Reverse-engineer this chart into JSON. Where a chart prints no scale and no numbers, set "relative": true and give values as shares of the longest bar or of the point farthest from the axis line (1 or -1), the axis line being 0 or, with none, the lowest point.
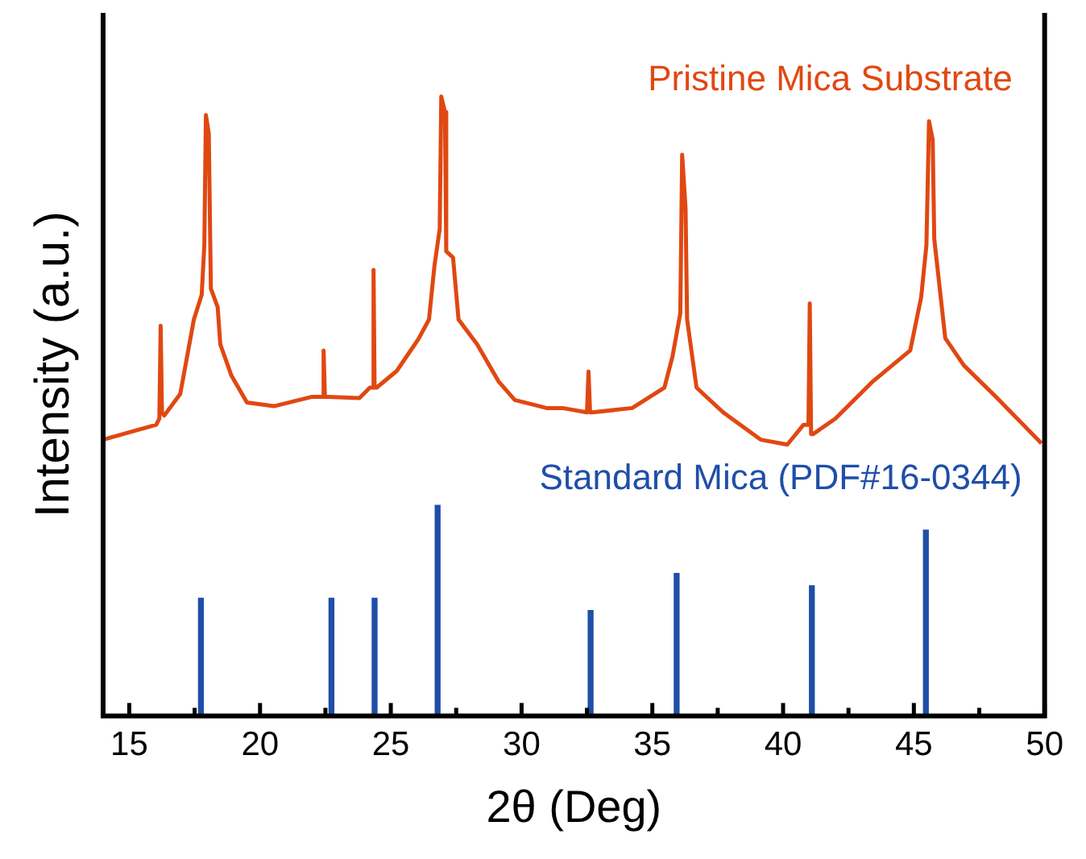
{
  "chart_data": {
    "type": "line",
    "xlabel": "2θ (Deg)",
    "ylabel": "Intensity (a.u.)",
    "relative": true,
    "xlim": [
      14,
      50
    ],
    "xticks": [
      15,
      {
        "value": 17.5,
        "label": null
      },
      20,
      {
        "value": 22.5,
        "label": null
      },
      25,
      {
        "value": 27.5,
        "label": null
      },
      30,
      {
        "value": 32.5,
        "label": null
      },
      35,
      {
        "value": 37.5,
        "label": null
      },
      40,
      {
        "value": 42.5,
        "label": null
      },
      45,
      {
        "value": 47.5,
        "label": null
      },
      50
    ],
    "tick_labels": "x",
    "grid": false,
    "legend": false,
    "marker": "none",
    "line_style": "solid",
    "series": [
      {
        "name": "Pristine Mica Substrate",
        "color": "#e04812",
        "x": [
          14.0,
          16.03,
          16.15,
          16.2,
          16.25,
          16.34,
          16.95,
          17.47,
          17.77,
          17.87,
          17.93,
          18.04,
          18.12,
          18.38,
          18.48,
          18.9,
          19.5,
          20.53,
          21.96,
          22.38,
          22.43,
          22.48,
          22.6,
          23.8,
          24.2,
          24.3,
          24.34,
          24.38,
          24.46,
          25.23,
          26.05,
          26.46,
          26.67,
          26.87,
          26.93,
          27.07,
          27.12,
          27.38,
          27.59,
          28.3,
          29.12,
          29.74,
          30.96,
          31.57,
          32.5,
          32.56,
          32.62,
          32.7,
          34.23,
          35.46,
          35.77,
          36.07,
          36.14,
          36.27,
          36.33,
          36.69,
          37.71,
          39.14,
          40.16,
          40.78,
          40.97,
          41.02,
          41.07,
          41.15,
          42.0,
          43.43,
          44.86,
          45.28,
          45.48,
          45.58,
          45.72,
          45.78,
          46.2,
          46.91,
          48.14,
          49.88
        ],
        "values": [
          0.446,
          0.47,
          0.48,
          0.63,
          0.49,
          0.485,
          0.52,
          0.64,
          0.68,
          0.76,
          0.97,
          0.94,
          0.69,
          0.66,
          0.6,
          0.55,
          0.506,
          0.5,
          0.515,
          0.515,
          0.59,
          0.515,
          0.515,
          0.513,
          0.53,
          0.53,
          0.72,
          0.53,
          0.53,
          0.557,
          0.608,
          0.64,
          0.727,
          0.786,
          1.0,
          0.975,
          0.75,
          0.74,
          0.64,
          0.6,
          0.54,
          0.51,
          0.497,
          0.497,
          0.49,
          0.556,
          0.49,
          0.49,
          0.497,
          0.53,
          0.58,
          0.65,
          0.906,
          0.82,
          0.64,
          0.53,
          0.49,
          0.446,
          0.438,
          0.47,
          0.47,
          0.666,
          0.455,
          0.455,
          0.48,
          0.54,
          0.59,
          0.676,
          0.76,
          0.96,
          0.93,
          0.77,
          0.61,
          0.566,
          0.515,
          0.44
        ]
      },
      {
        "name": "Standard Mica (PDF#16-0344)",
        "color": "#1f4ea8",
        "type": "bar",
        "x": [
          17.74,
          22.73,
          24.38,
          26.79,
          32.64,
          35.93,
          41.1,
          45.46
        ],
        "values": [
          0.19,
          0.19,
          0.19,
          0.34,
          0.17,
          0.23,
          0.21,
          0.3
        ]
      }
    ]
  }
}
